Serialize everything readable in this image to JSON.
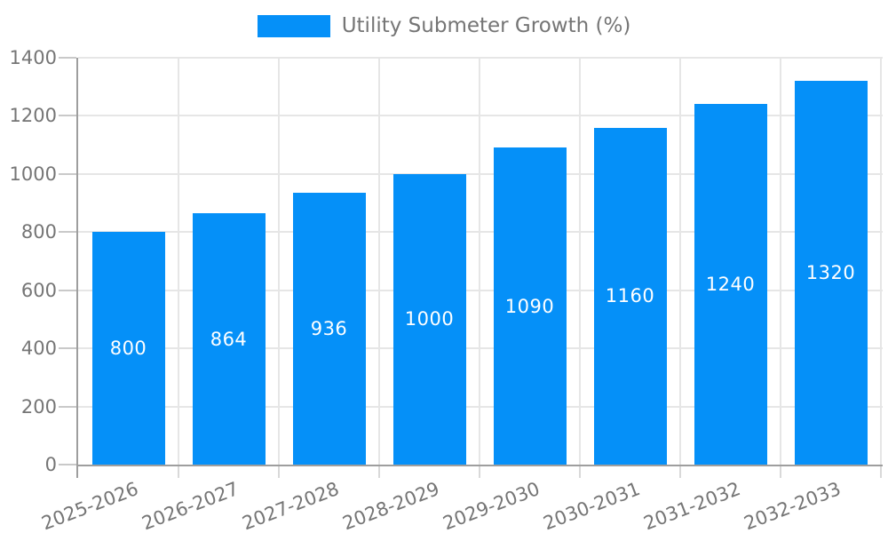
{
  "chart_data": {
    "type": "bar",
    "title": "Utility Submeter Growth (%)",
    "legend_position": "top",
    "categories": [
      "2025-2026",
      "2026-2027",
      "2027-2028",
      "2028-2029",
      "2029-2030",
      "2030-2031",
      "2031-2032",
      "2032-2033"
    ],
    "values": [
      800,
      864,
      936,
      1000,
      1090,
      1160,
      1240,
      1320
    ],
    "bar_labels": [
      "800",
      "864",
      "936",
      "1000",
      "1090",
      "1160",
      "1240",
      "1320"
    ],
    "xlabel": "",
    "ylabel": "",
    "ylim": [
      0,
      1400
    ],
    "y_ticks": [
      0,
      200,
      400,
      600,
      800,
      1000,
      1200,
      1400
    ],
    "grid": true,
    "colors": {
      "bar": "#0590f8",
      "grid": "#e6e6e6",
      "axis": "#9e9e9e",
      "tick": "#c9c9c9",
      "text": "#757575",
      "bar_label_text": "#ffffff",
      "background": "#ffffff"
    }
  }
}
